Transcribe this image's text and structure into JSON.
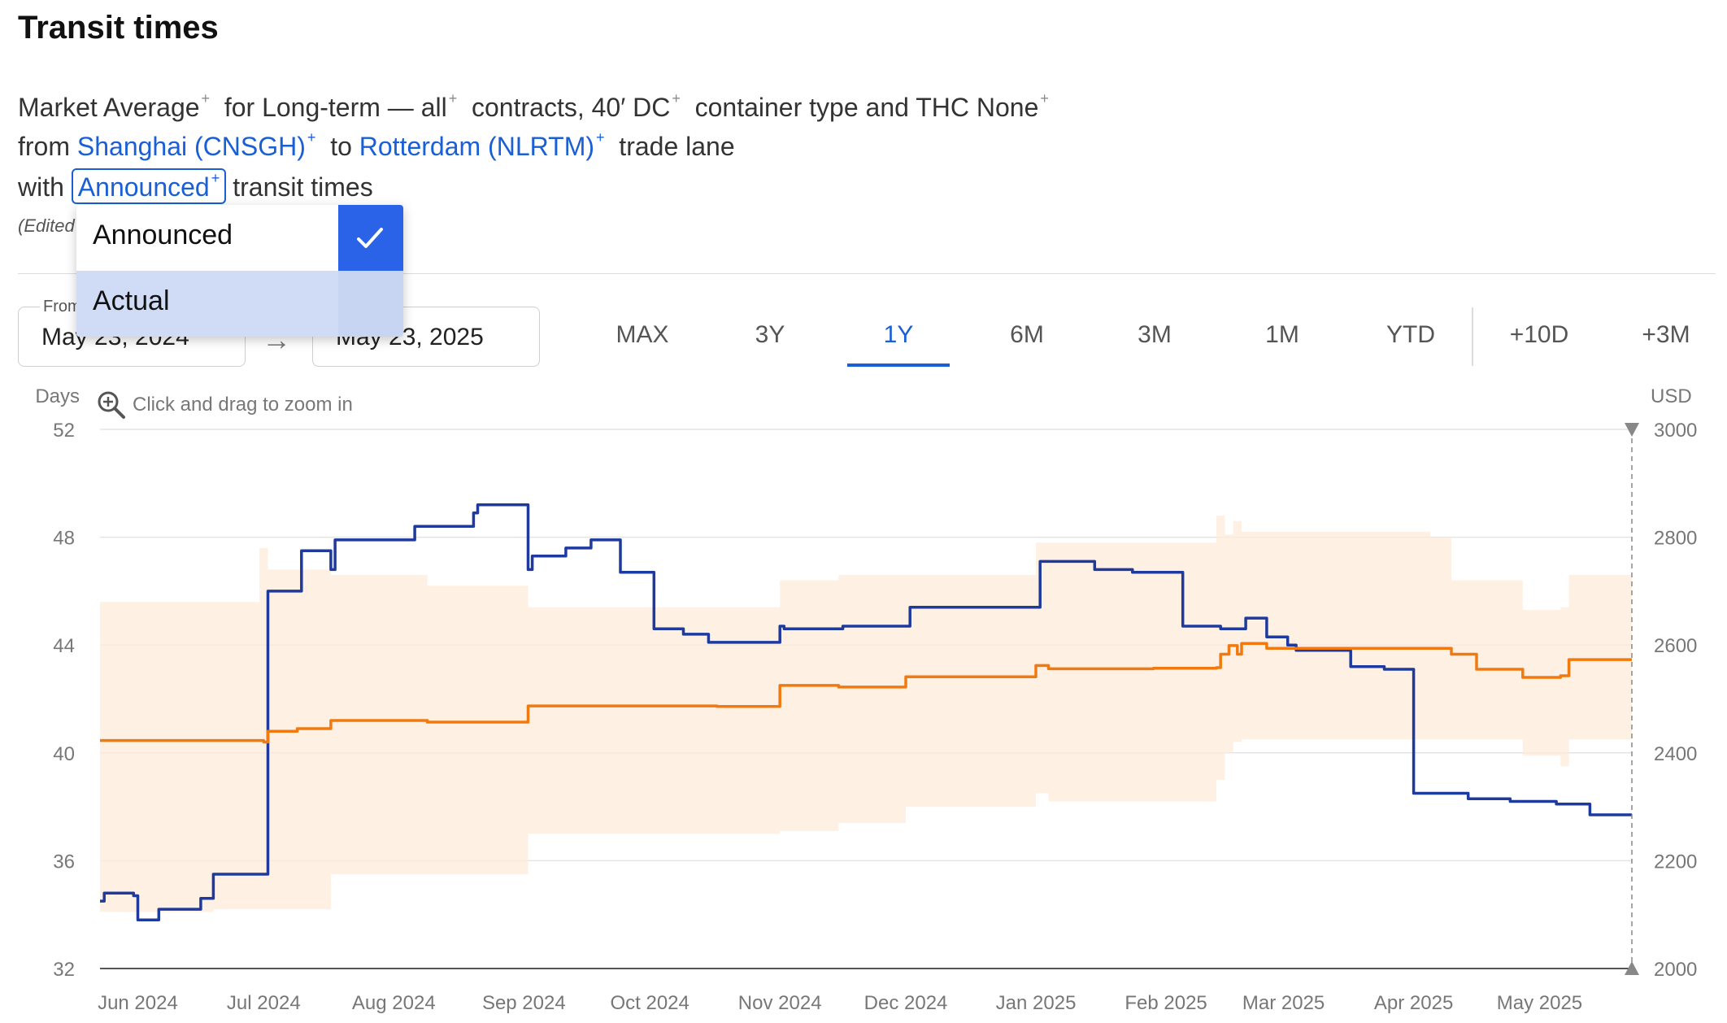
{
  "page": {
    "title": "Transit times",
    "desc": {
      "market": "Market",
      "average": "Average",
      "for": "for",
      "contract": "Long-term — all",
      "contracts_word": "contracts,",
      "container": "40′ DC",
      "container_rest": "container type and THC",
      "thc": "None",
      "from": "from",
      "origin": "Shanghai (CNSGH)",
      "to": "to",
      "destination": "Rotterdam (NLRTM)",
      "trade_lane": "trade lane",
      "with": "with",
      "transit_type": "Announced",
      "transit_times": "transit times",
      "plus": "+"
    },
    "edited_note": "(Edited",
    "dropdown": {
      "options": [
        "Announced",
        "Actual"
      ],
      "selected": "Announced",
      "hovered": "Actual"
    },
    "date_from": {
      "caption": "From",
      "value": "May 23, 2024"
    },
    "date_to": {
      "value": "May 23, 2025"
    },
    "ranges": [
      "MAX",
      "3Y",
      "1Y",
      "6M",
      "3M",
      "1M",
      "YTD"
    ],
    "forecasts": [
      "+10D",
      "+3M"
    ],
    "active_range": "1Y",
    "zoom_hint": "Click and drag to zoom in",
    "colors": {
      "accent": "#1a5fd6",
      "transit_line": "#1f3a9e",
      "price_line": "#f07a10",
      "price_band": "#fdebd9"
    }
  },
  "chart_data": {
    "type": "line",
    "ylabel_left": "Days",
    "ylabel_right": "USD",
    "ylim_left": [
      32,
      52
    ],
    "ylim_right": [
      2000,
      3000
    ],
    "yticks_left": [
      52,
      48,
      44,
      40,
      36,
      32
    ],
    "yticks_right": [
      3000,
      2800,
      2600,
      2400,
      2200,
      2000
    ],
    "xlim": [
      "2024-05-23",
      "2025-05-23"
    ],
    "xticks": [
      {
        "label": "Jun 2024",
        "date": "2024-06-01"
      },
      {
        "label": "Jul 2024",
        "date": "2024-07-01"
      },
      {
        "label": "Aug 2024",
        "date": "2024-08-01"
      },
      {
        "label": "Sep 2024",
        "date": "2024-09-01"
      },
      {
        "label": "Oct 2024",
        "date": "2024-10-01"
      },
      {
        "label": "Nov 2024",
        "date": "2024-11-01"
      },
      {
        "label": "Dec 2024",
        "date": "2024-12-01"
      },
      {
        "label": "Jan 2025",
        "date": "2025-01-01"
      },
      {
        "label": "Feb 2025",
        "date": "2025-02-01"
      },
      {
        "label": "Mar 2025",
        "date": "2025-03-01"
      },
      {
        "label": "Apr 2025",
        "date": "2025-04-01"
      },
      {
        "label": "May 2025",
        "date": "2025-05-01"
      }
    ],
    "grid": true,
    "series": [
      {
        "axis": "left",
        "step": true,
        "points": [
          [
            "2024-05-23",
            34.5
          ],
          [
            "2024-05-24",
            34.8
          ],
          [
            "2024-05-31",
            34.7
          ],
          [
            "2024-06-01",
            33.8
          ],
          [
            "2024-06-06",
            34.2
          ],
          [
            "2024-06-16",
            34.6
          ],
          [
            "2024-06-19",
            35.5
          ],
          [
            "2024-07-02",
            36.0
          ],
          [
            "2024-07-02",
            46.0
          ],
          [
            "2024-07-10",
            47.5
          ],
          [
            "2024-07-17",
            46.8
          ],
          [
            "2024-07-18",
            47.9
          ],
          [
            "2024-08-06",
            48.4
          ],
          [
            "2024-08-20",
            48.9
          ],
          [
            "2024-08-21",
            49.2
          ],
          [
            "2024-09-02",
            46.8
          ],
          [
            "2024-09-03",
            47.3
          ],
          [
            "2024-09-11",
            47.6
          ],
          [
            "2024-09-17",
            47.9
          ],
          [
            "2024-09-24",
            46.7
          ],
          [
            "2024-10-02",
            44.6
          ],
          [
            "2024-10-09",
            44.4
          ],
          [
            "2024-10-15",
            44.1
          ],
          [
            "2024-10-30",
            44.1
          ],
          [
            "2024-11-01",
            44.7
          ],
          [
            "2024-11-02",
            44.6
          ],
          [
            "2024-11-16",
            44.7
          ],
          [
            "2024-12-02",
            45.4
          ],
          [
            "2024-12-14",
            45.4
          ],
          [
            "2024-12-30",
            45.4
          ],
          [
            "2025-01-02",
            47.1
          ],
          [
            "2025-01-15",
            46.8
          ],
          [
            "2025-01-24",
            46.7
          ],
          [
            "2025-02-05",
            44.7
          ],
          [
            "2025-02-14",
            44.6
          ],
          [
            "2025-02-20",
            45.0
          ],
          [
            "2025-02-25",
            44.3
          ],
          [
            "2025-03-02",
            44.0
          ],
          [
            "2025-03-04",
            43.8
          ],
          [
            "2025-03-17",
            43.2
          ],
          [
            "2025-03-25",
            43.1
          ],
          [
            "2025-04-01",
            38.5
          ],
          [
            "2025-04-14",
            38.3
          ],
          [
            "2025-04-24",
            38.2
          ],
          [
            "2025-05-05",
            38.1
          ],
          [
            "2025-05-13",
            37.7
          ],
          [
            "2025-05-23",
            37.7
          ]
        ]
      },
      {
        "axis": "right",
        "step": true,
        "points": [
          [
            "2024-05-23",
            2423
          ],
          [
            "2024-07-01",
            2420
          ],
          [
            "2024-07-02",
            2440
          ],
          [
            "2024-07-09",
            2445
          ],
          [
            "2024-07-17",
            2460
          ],
          [
            "2024-08-09",
            2457
          ],
          [
            "2024-09-02",
            2487
          ],
          [
            "2024-10-17",
            2486
          ],
          [
            "2024-11-01",
            2525
          ],
          [
            "2024-11-15",
            2522
          ],
          [
            "2024-12-01",
            2541
          ],
          [
            "2024-12-31",
            2541
          ],
          [
            "2025-01-01",
            2562
          ],
          [
            "2025-01-04",
            2556
          ],
          [
            "2025-01-29",
            2557
          ],
          [
            "2025-02-13",
            2558
          ],
          [
            "2025-02-14",
            2583
          ],
          [
            "2025-02-16",
            2599
          ],
          [
            "2025-02-18",
            2583
          ],
          [
            "2025-02-19",
            2603
          ],
          [
            "2025-02-25",
            2594
          ],
          [
            "2025-04-05",
            2594
          ],
          [
            "2025-04-10",
            2583
          ],
          [
            "2025-04-16",
            2555
          ],
          [
            "2025-04-27",
            2540
          ],
          [
            "2025-05-06",
            2543
          ],
          [
            "2025-05-08",
            2573
          ],
          [
            "2025-05-23",
            2573
          ]
        ]
      }
    ],
    "band": {
      "axis": "right",
      "step": true,
      "upper": [
        [
          "2024-05-23",
          2680
        ],
        [
          "2024-06-30",
          2780
        ],
        [
          "2024-07-02",
          2740
        ],
        [
          "2024-07-17",
          2730
        ],
        [
          "2024-08-09",
          2710
        ],
        [
          "2024-09-02",
          2670
        ],
        [
          "2024-11-01",
          2720
        ],
        [
          "2024-11-15",
          2730
        ],
        [
          "2024-12-31",
          2730
        ],
        [
          "2025-01-01",
          2790
        ],
        [
          "2025-01-29",
          2790
        ],
        [
          "2025-02-13",
          2840
        ],
        [
          "2025-02-15",
          2805
        ],
        [
          "2025-02-17",
          2830
        ],
        [
          "2025-02-19",
          2810
        ],
        [
          "2025-04-05",
          2800
        ],
        [
          "2025-04-10",
          2720
        ],
        [
          "2025-04-27",
          2665
        ],
        [
          "2025-05-06",
          2670
        ],
        [
          "2025-05-08",
          2730
        ],
        [
          "2025-05-23",
          2730
        ]
      ],
      "lower": [
        [
          "2024-05-23",
          2105
        ],
        [
          "2024-06-18",
          2105
        ],
        [
          "2024-06-19",
          2110
        ],
        [
          "2024-07-02",
          2110
        ],
        [
          "2024-07-17",
          2175
        ],
        [
          "2024-09-02",
          2250
        ],
        [
          "2024-11-01",
          2255
        ],
        [
          "2024-11-15",
          2270
        ],
        [
          "2024-12-01",
          2300
        ],
        [
          "2024-12-31",
          2300
        ],
        [
          "2025-01-01",
          2325
        ],
        [
          "2025-01-04",
          2310
        ],
        [
          "2025-01-29",
          2310
        ],
        [
          "2025-02-13",
          2350
        ],
        [
          "2025-02-15",
          2400
        ],
        [
          "2025-02-17",
          2420
        ],
        [
          "2025-02-19",
          2425
        ],
        [
          "2025-04-05",
          2425
        ],
        [
          "2025-04-27",
          2395
        ],
        [
          "2025-05-06",
          2375
        ],
        [
          "2025-05-08",
          2425
        ],
        [
          "2025-05-23",
          2425
        ]
      ]
    }
  }
}
